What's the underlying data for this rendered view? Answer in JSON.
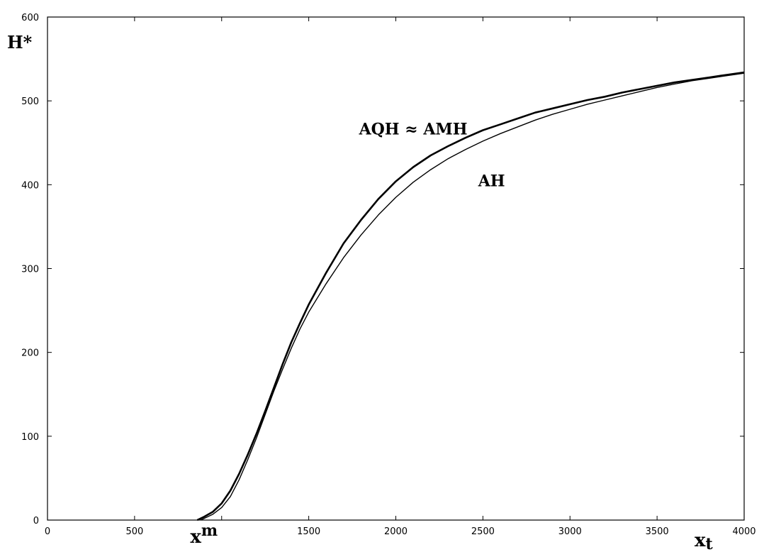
{
  "chart_data": {
    "type": "line",
    "title": "",
    "ylabel": "H*",
    "xlabel": "x",
    "xlabel_sub": "t",
    "xmarker": {
      "label": "x",
      "sup": "m",
      "x": 860
    },
    "xlim": [
      0,
      4000
    ],
    "ylim": [
      0,
      600
    ],
    "x_ticks": [
      0,
      500,
      1000,
      1500,
      2000,
      2500,
      3000,
      3500,
      4000
    ],
    "x_tick_labels": [
      "0",
      "500",
      "",
      "1500",
      "2000",
      "2500",
      "3000",
      "3500",
      "4000"
    ],
    "y_ticks": [
      0,
      100,
      200,
      300,
      400,
      500,
      600
    ],
    "y_tick_labels": [
      "0",
      "100",
      "200",
      "300",
      "400",
      "500",
      "600"
    ],
    "grid": false,
    "legend": "none",
    "series": [
      {
        "name": "AQH ≈ AMH",
        "label_at": [
          2100,
          460
        ],
        "stroke": "#000000",
        "x": [
          860,
          900,
          950,
          1000,
          1050,
          1100,
          1150,
          1200,
          1250,
          1300,
          1350,
          1400,
          1450,
          1500,
          1600,
          1700,
          1800,
          1900,
          2000,
          2100,
          2200,
          2300,
          2400,
          2500,
          2600,
          2700,
          2800,
          2900,
          3000,
          3100,
          3200,
          3300,
          3400,
          3500,
          3600,
          3700,
          3800,
          3900,
          4000
        ],
        "values": [
          0,
          4,
          10,
          20,
          35,
          55,
          78,
          103,
          130,
          158,
          186,
          212,
          235,
          257,
          295,
          330,
          358,
          383,
          404,
          421,
          435,
          446,
          456,
          465,
          472,
          479,
          486,
          491,
          496,
          501,
          505,
          510,
          514,
          518,
          522,
          525,
          528,
          531,
          534
        ]
      },
      {
        "name": "AH",
        "label_at": [
          2550,
          398
        ],
        "stroke": "#000000",
        "x": [
          880,
          900,
          950,
          1000,
          1050,
          1100,
          1150,
          1200,
          1250,
          1300,
          1350,
          1400,
          1450,
          1500,
          1600,
          1700,
          1800,
          1900,
          2000,
          2100,
          2200,
          2300,
          2400,
          2500,
          2600,
          2700,
          2800,
          2900,
          3000,
          3100,
          3200,
          3300,
          3400,
          3500,
          3600,
          3700,
          3800,
          3900,
          4000
        ],
        "values": [
          0,
          2,
          7,
          15,
          28,
          48,
          72,
          98,
          126,
          154,
          180,
          205,
          228,
          248,
          282,
          313,
          340,
          364,
          385,
          403,
          418,
          431,
          442,
          452,
          461,
          469,
          477,
          484,
          490,
          496,
          501,
          506,
          511,
          516,
          520,
          524,
          527,
          530,
          533
        ]
      }
    ]
  }
}
